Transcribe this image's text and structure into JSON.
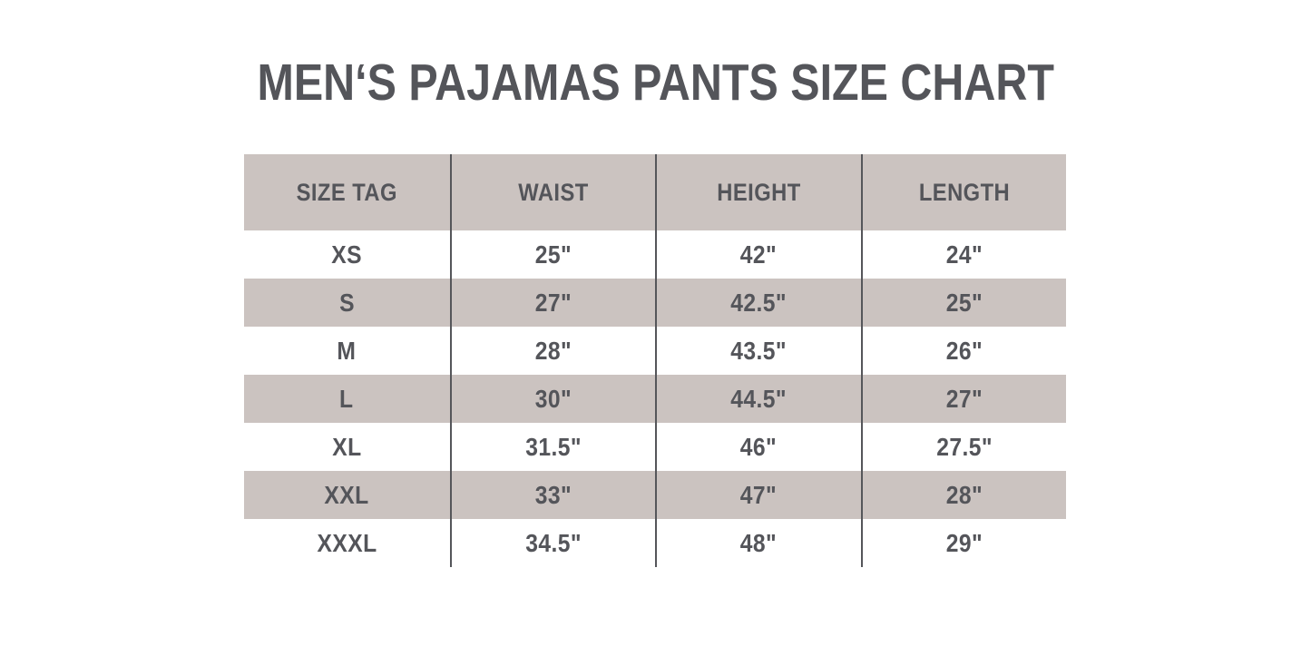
{
  "title": "MEN‘S PAJAMAS PANTS SIZE CHART",
  "colors": {
    "bg": "#ffffff",
    "taupe": "#cbc3c0",
    "ink": "#54555a",
    "divider": "#55565a"
  },
  "chart_data": {
    "type": "table",
    "title": "MEN‘S PAJAMAS PANTS SIZE CHART",
    "columns": [
      "SIZE TAG",
      "WAIST",
      "HEIGHT",
      "LENGTH"
    ],
    "rows": [
      [
        "XS",
        "25\"",
        "42\"",
        "24\""
      ],
      [
        "S",
        "27\"",
        "42.5\"",
        "25\""
      ],
      [
        "M",
        "28\"",
        "43.5\"",
        "26\""
      ],
      [
        "L",
        "30\"",
        "44.5\"",
        "27\""
      ],
      [
        "XL",
        "31.5\"",
        "46\"",
        "27.5\""
      ],
      [
        "XXL",
        "33\"",
        "47\"",
        "28\""
      ],
      [
        "XXXL",
        "34.5\"",
        "48\"",
        "29\""
      ]
    ],
    "layout": {
      "header_bg": "#cbc3c0",
      "row_alt_bg": "#cbc3c0",
      "row_bg": "#ffffff",
      "stripe_order": [
        "white",
        "taupe",
        "white",
        "taupe",
        "white",
        "taupe",
        "white"
      ],
      "grid": "vertical-dividers-only"
    }
  }
}
